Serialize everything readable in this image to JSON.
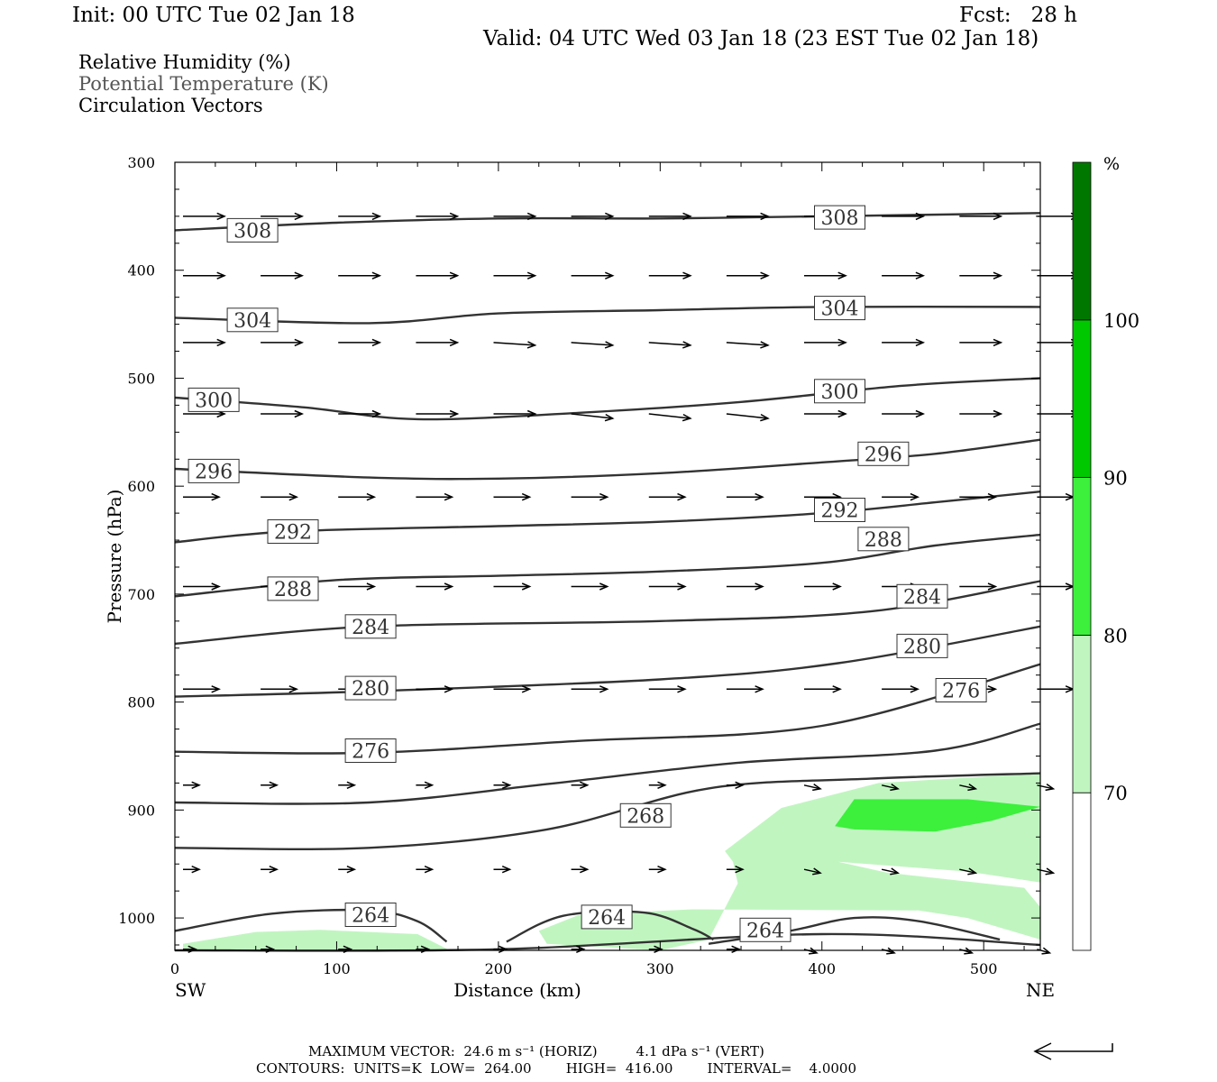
{
  "header": {
    "init": "Init: 00 UTC Tue 02 Jan 18",
    "fcst": "Fcst:   28 h",
    "valid": "Valid: 04 UTC Wed 03 Jan 18 (23 EST Tue 02 Jan 18)"
  },
  "fields": [
    {
      "label": "Relative Humidity (%)",
      "color": "#000000"
    },
    {
      "label": "Potential Temperature (K)",
      "color": "#555555"
    },
    {
      "label": "Circulation Vectors",
      "color": "#000000"
    }
  ],
  "chart_data": {
    "type": "contour",
    "xlabel": "Distance (km)",
    "ylabel": "Pressure (hPa)",
    "xlim": [
      0,
      535
    ],
    "ylim": [
      1030,
      300
    ],
    "y_scale": "linear",
    "x_ticks": [
      0,
      100,
      200,
      300,
      400,
      500
    ],
    "y_ticks": [
      300,
      400,
      500,
      600,
      700,
      800,
      900,
      1000
    ],
    "x_end_labels": {
      "left": "SW",
      "right": "NE"
    },
    "colorbar": {
      "unit_label": "%",
      "levels": [
        70,
        80,
        90,
        100
      ],
      "colors": [
        "#ffffff",
        "#c0f5c0",
        "#3cf03c",
        "#00c800",
        "#007800"
      ]
    },
    "theta_contours": [
      {
        "value": 308,
        "points": [
          [
            0,
            363
          ],
          [
            100,
            356
          ],
          [
            200,
            352
          ],
          [
            300,
            352
          ],
          [
            400,
            350
          ],
          [
            535,
            347
          ]
        ],
        "labels": [
          [
            48,
            363
          ],
          [
            411,
            351
          ]
        ]
      },
      {
        "value": 304,
        "points": [
          [
            0,
            444
          ],
          [
            120,
            449
          ],
          [
            200,
            440
          ],
          [
            300,
            437
          ],
          [
            400,
            434
          ],
          [
            535,
            434
          ]
        ],
        "labels": [
          [
            48,
            446
          ],
          [
            411,
            435
          ]
        ]
      },
      {
        "value": 300,
        "points": [
          [
            0,
            518
          ],
          [
            80,
            527
          ],
          [
            150,
            538
          ],
          [
            250,
            532
          ],
          [
            350,
            522
          ],
          [
            450,
            507
          ],
          [
            535,
            500
          ]
        ],
        "labels": [
          [
            24,
            520
          ],
          [
            411,
            512
          ]
        ]
      },
      {
        "value": 296,
        "points": [
          [
            0,
            584
          ],
          [
            120,
            592
          ],
          [
            200,
            593
          ],
          [
            300,
            588
          ],
          [
            400,
            578
          ],
          [
            470,
            570
          ],
          [
            535,
            557
          ]
        ],
        "labels": [
          [
            24,
            586
          ],
          [
            438,
            570
          ]
        ]
      },
      {
        "value": 292,
        "points": [
          [
            0,
            652
          ],
          [
            70,
            642
          ],
          [
            200,
            637
          ],
          [
            300,
            633
          ],
          [
            400,
            625
          ],
          [
            470,
            615
          ],
          [
            535,
            605
          ]
        ],
        "labels": [
          [
            73,
            642
          ],
          [
            411,
            622
          ]
        ]
      },
      {
        "value": 288,
        "points": [
          [
            0,
            702
          ],
          [
            100,
            687
          ],
          [
            200,
            683
          ],
          [
            300,
            679
          ],
          [
            400,
            671
          ],
          [
            470,
            655
          ],
          [
            535,
            645
          ]
        ],
        "labels": [
          [
            73,
            695
          ],
          [
            438,
            649
          ]
        ]
      },
      {
        "value": 284,
        "points": [
          [
            0,
            746
          ],
          [
            120,
            730
          ],
          [
            300,
            725
          ],
          [
            430,
            716
          ],
          [
            535,
            688
          ]
        ],
        "labels": [
          [
            121,
            730
          ],
          [
            462,
            702
          ]
        ]
      },
      {
        "value": 280,
        "points": [
          [
            0,
            795
          ],
          [
            120,
            790
          ],
          [
            300,
            779
          ],
          [
            410,
            764
          ],
          [
            535,
            730
          ]
        ],
        "labels": [
          [
            121,
            787
          ],
          [
            462,
            748
          ]
        ]
      },
      {
        "value": 276,
        "points": [
          [
            0,
            846
          ],
          [
            120,
            847
          ],
          [
            250,
            836
          ],
          [
            400,
            822
          ],
          [
            535,
            765
          ]
        ],
        "labels": [
          [
            121,
            845
          ],
          [
            486,
            789
          ]
        ]
      },
      {
        "value": 272,
        "points": [
          [
            0,
            893
          ],
          [
            120,
            893
          ],
          [
            230,
            876
          ],
          [
            350,
            856
          ],
          [
            470,
            845
          ],
          [
            535,
            820
          ]
        ],
        "labels": []
      },
      {
        "value": 268,
        "points": [
          [
            0,
            935
          ],
          [
            120,
            935
          ],
          [
            230,
            918
          ],
          [
            330,
            880
          ],
          [
            430,
            871
          ],
          [
            535,
            866
          ]
        ],
        "labels": [
          [
            291,
            905
          ]
        ]
      },
      {
        "value": 264,
        "points": [
          [
            0,
            1012
          ],
          [
            60,
            996
          ],
          [
            120,
            993
          ],
          [
            150,
            1003
          ],
          [
            168,
            1022
          ]
        ],
        "labels": [
          [
            121,
            997
          ]
        ]
      },
      {
        "value": 264,
        "points": [
          [
            205,
            1022
          ],
          [
            240,
            998
          ],
          [
            290,
            995
          ],
          [
            320,
            1010
          ],
          [
            333,
            1020
          ]
        ],
        "labels": [
          [
            267,
            999
          ]
        ]
      },
      {
        "value": 264,
        "points": [
          [
            330,
            1024
          ],
          [
            380,
            1012
          ],
          [
            420,
            1000
          ],
          [
            460,
            1003
          ],
          [
            510,
            1020
          ]
        ],
        "labels": [
          [
            365,
            1011
          ]
        ]
      },
      {
        "value": 264,
        "points": [
          [
            0,
            1030
          ],
          [
            200,
            1029
          ],
          [
            400,
            1015
          ],
          [
            535,
            1025
          ]
        ],
        "labels": []
      }
    ],
    "rh_regions": [
      {
        "level": 70,
        "points": [
          [
            340,
            938
          ],
          [
            375,
            898
          ],
          [
            435,
            875
          ],
          [
            535,
            866
          ],
          [
            535,
            967
          ],
          [
            490,
            957
          ],
          [
            410,
            948
          ],
          [
            440,
            958
          ],
          [
            525,
            972
          ],
          [
            535,
            990
          ],
          [
            535,
            1020
          ],
          [
            490,
            1000
          ],
          [
            460,
            993
          ],
          [
            320,
            992
          ],
          [
            250,
            997
          ],
          [
            225,
            1012
          ],
          [
            230,
            1024
          ],
          [
            300,
            1030
          ],
          [
            330,
            1020
          ],
          [
            348,
            968
          ],
          [
            345,
            948
          ]
        ]
      },
      {
        "level": 70,
        "points": [
          [
            5,
            1024
          ],
          [
            50,
            1013
          ],
          [
            90,
            1011
          ],
          [
            150,
            1015
          ],
          [
            170,
            1030
          ],
          [
            5,
            1030
          ]
        ]
      },
      {
        "level": 80,
        "points": [
          [
            408,
            915
          ],
          [
            420,
            890
          ],
          [
            490,
            890
          ],
          [
            535,
            897
          ],
          [
            505,
            910
          ],
          [
            470,
            920
          ],
          [
            420,
            918
          ]
        ]
      }
    ],
    "vectors": {
      "levels_hPa": [
        350,
        405,
        467,
        533,
        610,
        693,
        788,
        877,
        955,
        1029
      ],
      "x_km": [
        5,
        53,
        101,
        149,
        197,
        245,
        293,
        341,
        389,
        437,
        485,
        533
      ]
    },
    "max_vector": {
      "horiz": "24.6 m s",
      "horiz_unit": "(HORIZ)",
      "vert": "4.1 dPa s",
      "vert_unit": "(VERT)"
    }
  },
  "footer": {
    "line1": "MAXIMUM VECTOR:  24.6 m s⁻¹ (HORIZ)         4.1 dPa s⁻¹ (VERT)",
    "line2": "CONTOURS:  UNITS=K  LOW=  264.00        HIGH=  416.00        INTERVAL=    4.0000"
  }
}
